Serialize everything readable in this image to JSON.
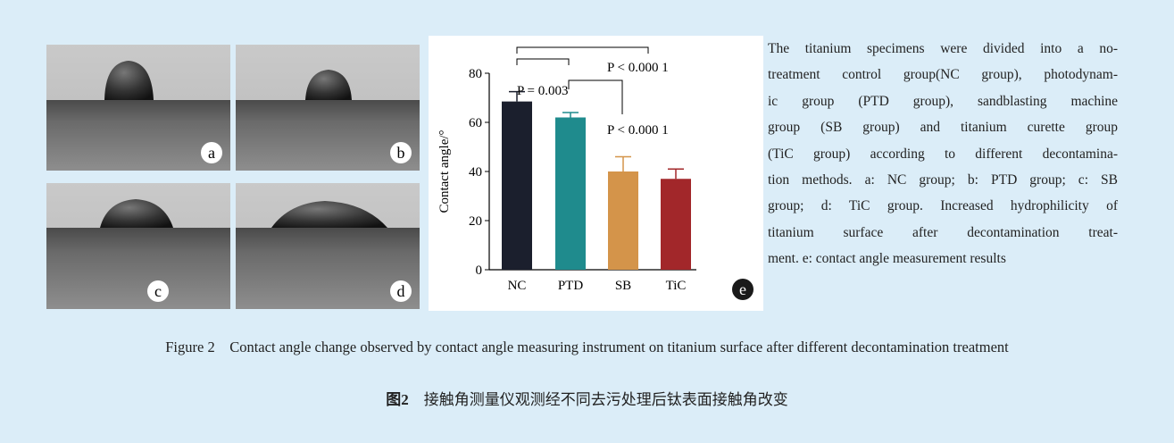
{
  "panels": [
    "a",
    "b",
    "c",
    "d",
    "e"
  ],
  "chart_data": {
    "type": "bar",
    "y_label": "Contact angle/°",
    "categories": [
      "NC",
      "PTD",
      "SB",
      "TiC"
    ],
    "values": [
      68.5,
      62,
      40,
      37
    ],
    "errors": [
      4,
      2,
      6,
      4
    ],
    "colors": [
      "#1b1f2d",
      "#1f8b8d",
      "#d4944a",
      "#a2272a"
    ],
    "ylim": [
      0,
      80
    ],
    "yticks": [
      0,
      20,
      40,
      60,
      80
    ],
    "annotations": [
      "P = 0.003",
      "P < 0.000 1",
      "P < 0.000 1"
    ]
  },
  "description_lines": [
    "The titanium specimens were divided into a no-",
    "treatment control group(NC group), photodynam-",
    "ic group (PTD group), sandblasting machine",
    "group (SB group) and titanium curette group",
    "(TiC group) according to different decontamina-",
    "tion methods. a: NC group; b: PTD group; c: SB",
    "group; d: TiC group. Increased hydrophilicity of",
    "titanium surface after decontamination treat-",
    "ment. e: contact angle measurement results"
  ],
  "caption": {
    "label_en": "Figure 2",
    "text_en": "Contact angle change observed by contact angle measuring instrument on titanium surface after different decontamination treatment",
    "label_cn": "图2",
    "text_cn": "接触角测量仪观测经不同去污处理后钛表面接触角改变"
  }
}
